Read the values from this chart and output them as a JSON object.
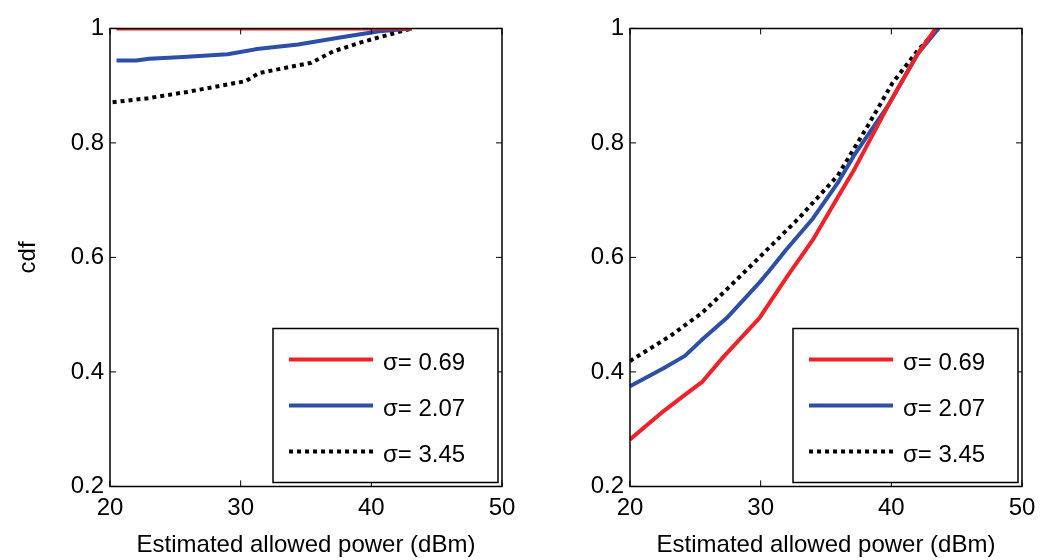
{
  "chart_data": [
    {
      "type": "line",
      "ylabel": "cdf",
      "xlabel": "Estimated allowed power (dBm)",
      "xlim": [
        20,
        50
      ],
      "xticks": [
        20,
        30,
        40,
        50
      ],
      "ylim": [
        0.2,
        1
      ],
      "yticks": [
        0.2,
        0.4,
        0.6,
        0.8,
        1
      ],
      "grid": false,
      "legend": "bottom right",
      "series": [
        {
          "name": "σ= 0.69",
          "color": "#ee2229",
          "line_style": "solid",
          "x": [
            20.5,
            43.1
          ],
          "values": [
            1,
            1
          ]
        },
        {
          "name": "σ= 2.07",
          "color": "#2e4fa8",
          "line_style": "solid",
          "x": [
            20.5,
            22,
            23,
            25.6,
            29,
            31.25,
            34.4,
            37.6,
            40.6,
            43.1
          ],
          "values": [
            0.944,
            0.944,
            0.947,
            0.95,
            0.955,
            0.964,
            0.972,
            0.984,
            0.995,
            1
          ]
        },
        {
          "name": "σ= 3.45",
          "color": "#000000",
          "line_style": "dotted",
          "x": [
            20.2,
            22.9,
            25.9,
            30.4,
            31.4,
            35.4,
            37.1,
            39.4,
            43.1
          ],
          "values": [
            0.871,
            0.878,
            0.889,
            0.908,
            0.922,
            0.94,
            0.96,
            0.977,
            1
          ]
        }
      ]
    },
    {
      "type": "line",
      "xlabel": "Estimated allowed power (dBm)",
      "xlim": [
        20,
        50
      ],
      "xticks": [
        20,
        30,
        40,
        50
      ],
      "ylim": [
        0.2,
        1
      ],
      "yticks": [
        0.2,
        0.4,
        0.6,
        0.8,
        1
      ],
      "grid": false,
      "legend": "bottom right",
      "series": [
        {
          "name": "σ= 0.69",
          "color": "#ee2229",
          "line_style": "solid",
          "x": [
            20,
            22.6,
            24.2,
            25.5,
            27.1,
            29.9,
            32.1,
            34,
            35.9,
            37.2,
            39.8,
            42,
            43.4
          ],
          "values": [
            0.282,
            0.332,
            0.36,
            0.382,
            0.425,
            0.494,
            0.569,
            0.631,
            0.705,
            0.755,
            0.867,
            0.955,
            1
          ]
        },
        {
          "name": "σ= 2.07",
          "color": "#2e4fa8",
          "line_style": "solid",
          "x": [
            20,
            22.6,
            24.2,
            25.5,
            27.4,
            29.9,
            30.6,
            31.9,
            34,
            35.9,
            37.2,
            39.8,
            42,
            43.6
          ],
          "values": [
            0.375,
            0.407,
            0.428,
            0.456,
            0.494,
            0.556,
            0.575,
            0.612,
            0.668,
            0.73,
            0.78,
            0.867,
            0.955,
            1
          ]
        },
        {
          "name": "σ= 3.45",
          "color": "#000000",
          "line_style": "dotted",
          "x": [
            20,
            23.1,
            25.5,
            27.4,
            29.9,
            32.9,
            35.9,
            38.2,
            40.1,
            42,
            43.6
          ],
          "values": [
            0.419,
            0.463,
            0.503,
            0.544,
            0.6,
            0.668,
            0.743,
            0.83,
            0.905,
            0.961,
            1
          ]
        }
      ]
    }
  ]
}
